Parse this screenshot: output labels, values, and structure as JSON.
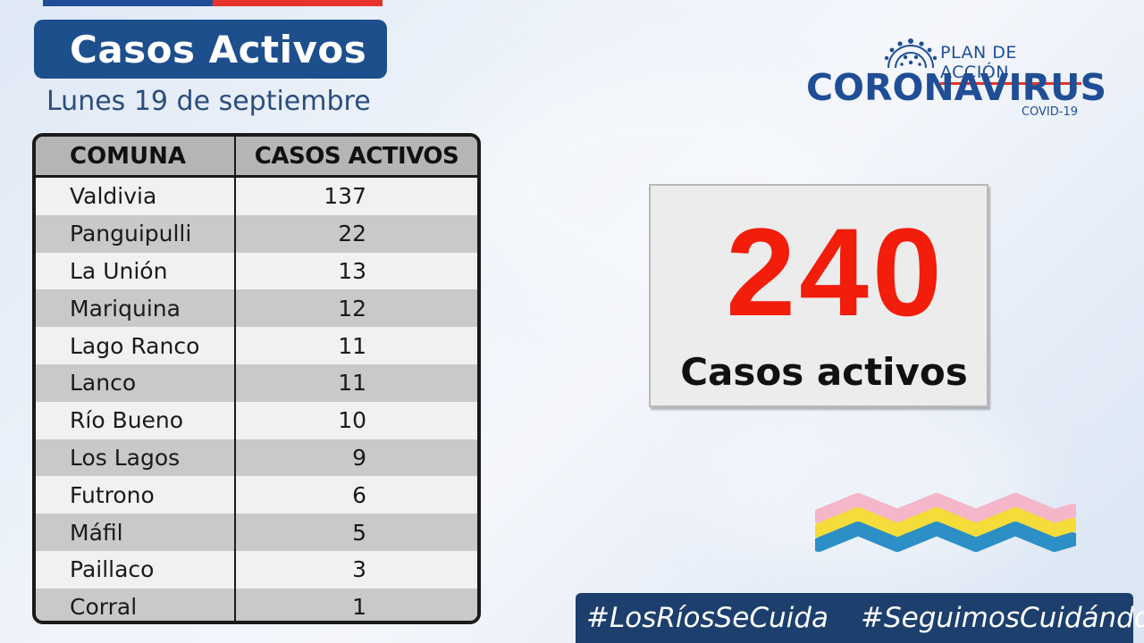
{
  "header": {
    "title": "Casos Activos",
    "date": "Lunes 19 de septiembre"
  },
  "table": {
    "columns": [
      "COMUNA",
      "CASOS ACTIVOS"
    ],
    "rows": [
      {
        "comuna": "Valdivia",
        "casos": "137"
      },
      {
        "comuna": "Panguipulli",
        "casos": "22"
      },
      {
        "comuna": "La Unión",
        "casos": "13"
      },
      {
        "comuna": "Mariquina",
        "casos": "12"
      },
      {
        "comuna": "Lago Ranco",
        "casos": "11"
      },
      {
        "comuna": "Lanco",
        "casos": "11"
      },
      {
        "comuna": "Río Bueno",
        "casos": "10"
      },
      {
        "comuna": "Los Lagos",
        "casos": "9"
      },
      {
        "comuna": "Futrono",
        "casos": "6"
      },
      {
        "comuna": "Máfil",
        "casos": "5"
      },
      {
        "comuna": "Paillaco",
        "casos": "3"
      },
      {
        "comuna": "Corral",
        "casos": "1"
      }
    ]
  },
  "logo": {
    "plan": "PLAN DE ACCIÓN",
    "main": "CORONAVIRUS",
    "sub": "COVID-19",
    "icon": "virus-icon"
  },
  "total": {
    "value": "240",
    "label": "Casos activos"
  },
  "hashtags": [
    "#LosRíosSeCuida",
    "#SeguimosCuidándonos"
  ],
  "colors": {
    "brand_blue": "#1d4f8c",
    "accent_red": "#f21d0a",
    "hashtag_bg": "#1d3f6e"
  }
}
